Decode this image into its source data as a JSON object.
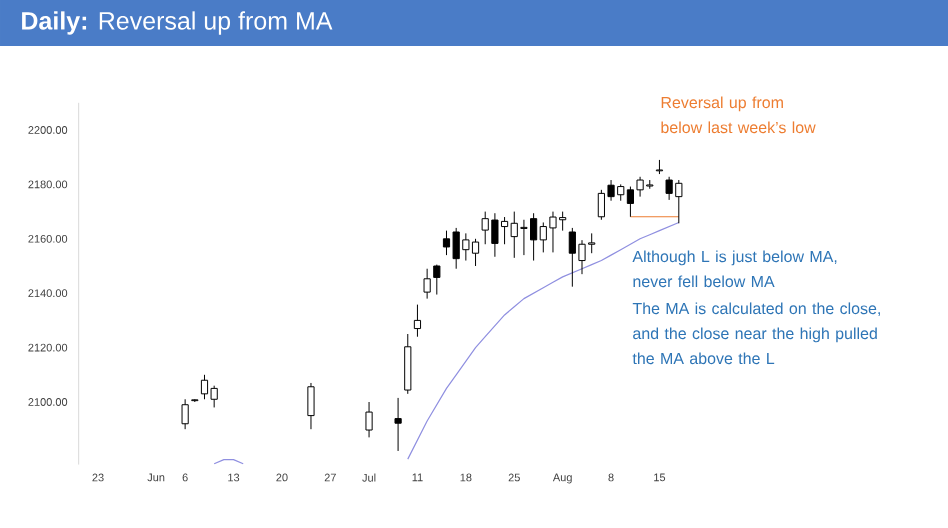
{
  "chart_data": {
    "type": "candlestick",
    "title": "**Daily:** Reversal up from MA",
    "categories": [
      "23",
      null,
      null,
      null,
      null,
      null,
      "Jun",
      null,
      null,
      "6",
      null,
      null,
      null,
      null,
      "13",
      null,
      null,
      null,
      null,
      "20",
      null,
      null,
      null,
      null,
      "27",
      null,
      null,
      null,
      "Jul",
      null,
      null,
      null,
      null,
      "11",
      null,
      null,
      null,
      null,
      "18",
      null,
      null,
      null,
      null,
      "25",
      null,
      null,
      null,
      null,
      "Aug",
      null,
      null,
      null,
      null,
      "8",
      null,
      null,
      null,
      null,
      "15",
      null,
      null
    ],
    "ohlc": [
      null,
      null,
      null,
      null,
      null,
      null,
      null,
      null,
      null,
      [
        2092,
        2101,
        2090,
        2099
      ],
      [
        2100.5,
        2101,
        2100,
        2100.8
      ],
      [
        2103,
        2110,
        2101,
        2108
      ],
      [
        2101,
        2106,
        2098,
        2105
      ],
      null,
      null,
      null,
      null,
      null,
      null,
      null,
      null,
      null,
      [
        2095,
        2107,
        2090,
        2105.6
      ],
      null,
      null,
      null,
      null,
      null,
      [
        2089.7,
        2100,
        2087,
        2096.3
      ],
      null,
      null,
      [
        2093.9,
        2101.5,
        2082,
        2092.2
      ],
      [
        2104.4,
        2125,
        2103,
        2120.3
      ],
      [
        2127,
        2135.8,
        2124,
        2130
      ],
      [
        2140.4,
        2149,
        2138,
        2145.3
      ],
      [
        2150,
        2150.5,
        2139.5,
        2145.8
      ],
      [
        2160,
        2163,
        2154,
        2157
      ],
      [
        2162.5,
        2164,
        2149,
        2152.7
      ],
      [
        2156,
        2162,
        2152,
        2159.6
      ],
      [
        2154.7,
        2160,
        2150,
        2158.8
      ],
      [
        2163.2,
        2170,
        2158,
        2167.4
      ],
      [
        2166.9,
        2169.4,
        2153.4,
        2158.3
      ],
      [
        2164.5,
        2168,
        2158,
        2166.4
      ],
      [
        2160.8,
        2170,
        2153,
        2165.7
      ],
      [
        2163.8,
        2167,
        2154,
        2164.2
      ],
      [
        2167.4,
        2169.4,
        2152,
        2159.6
      ],
      [
        2159.6,
        2166,
        2155,
        2164.5
      ],
      [
        2164,
        2170,
        2155,
        2168
      ],
      [
        2167,
        2170,
        2163,
        2167.8
      ],
      [
        2162.5,
        2164,
        2142.4,
        2154.7
      ],
      [
        2152,
        2159.5,
        2147,
        2158
      ],
      [
        2158,
        2162,
        2154.7,
        2158.5
      ],
      [
        2168.1,
        2178,
        2167,
        2176.7
      ],
      [
        2179.7,
        2181.6,
        2174,
        2175.5
      ],
      [
        2176.2,
        2180,
        2174,
        2179.2
      ],
      [
        2178,
        2179.2,
        2168.1,
        2173
      ],
      [
        2178,
        2182.8,
        2175.5,
        2181.6
      ],
      [
        2179.4,
        2181.6,
        2178.4,
        2179.8
      ],
      [
        2185,
        2189,
        2183.8,
        2185.3
      ],
      [
        2181.6,
        2182.8,
        2174.3,
        2176.7
      ],
      [
        2175.5,
        2181.6,
        2165.7,
        2180.4
      ]
    ],
    "series": [
      {
        "type": "line",
        "color": "#8f8fe0",
        "values": [
          null,
          null,
          null,
          null,
          null,
          null,
          null,
          null,
          null,
          null,
          null,
          null,
          2077.3,
          2078.8,
          2078.8,
          2077.3,
          null,
          null,
          null,
          null,
          null,
          null,
          null,
          null,
          null,
          null,
          null,
          null,
          null,
          null,
          null,
          null,
          2079,
          2086,
          2093,
          2099,
          2105,
          2110,
          2115,
          2120,
          2124,
          2128,
          2132,
          2135,
          2138,
          2140,
          2142,
          2144,
          2146,
          2147.5,
          2149,
          2150.5,
          2152,
          2154,
          2156,
          2158,
          2160,
          2161.5,
          2163,
          2164.5,
          2166
        ]
      },
      {
        "type": "line",
        "color": "#ed7d31",
        "values": [
          null,
          null,
          null,
          null,
          null,
          null,
          null,
          null,
          null,
          null,
          null,
          null,
          null,
          null,
          null,
          null,
          null,
          null,
          null,
          null,
          null,
          null,
          null,
          null,
          null,
          null,
          null,
          null,
          null,
          null,
          null,
          null,
          null,
          null,
          null,
          null,
          null,
          null,
          null,
          null,
          null,
          null,
          null,
          null,
          null,
          null,
          null,
          null,
          null,
          null,
          null,
          null,
          null,
          null,
          null,
          2168.1,
          2168.1,
          2168.1,
          2168.1,
          2168.1,
          2168.1
        ]
      }
    ],
    "ylim": [
      2077,
      2210
    ],
    "yticks": [
      {
        "value": 2100,
        "label": "2100.00"
      },
      {
        "value": 2120,
        "label": "2120.00"
      },
      {
        "value": 2140,
        "label": "2140.00"
      },
      {
        "value": 2160,
        "label": "2160.00"
      },
      {
        "value": 2180,
        "label": "2180.00"
      },
      {
        "value": 2200,
        "label": "2200.00"
      }
    ],
    "annotations": [
      "Reversal up from below last week’s low",
      "Although L is just below MA, never fell below MA",
      "The MA is calculated on the close, and the close near the high pulled the MA above the L"
    ]
  }
}
